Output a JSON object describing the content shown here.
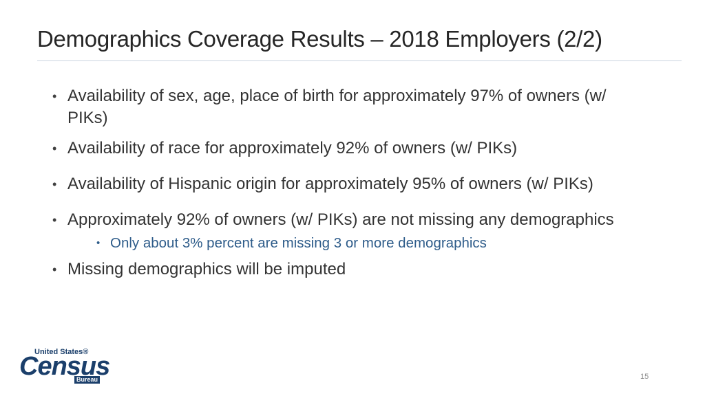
{
  "title": "Demographics Coverage Results – 2018 Employers (2/2)",
  "bullets": [
    {
      "text": "Availability of sex, age, place of birth for approximately 97% of owners (w/ PIKs)"
    },
    {
      "text": "Availability of race for approximately 92% of owners (w/ PIKs)"
    },
    {
      "text": "Availability of Hispanic origin for approximately 95% of owners (w/ PIKs)"
    },
    {
      "text": "Approximately 92% of owners (w/ PIKs) are not missing any demographics"
    },
    {
      "text": "Missing demographics will be imputed"
    }
  ],
  "sub_bullets": [
    {
      "text": "Only about 3% percent are missing 3 or more demographics"
    }
  ],
  "bullet_glyph": "•",
  "logo": {
    "line1": "United States®",
    "line2": "Census",
    "line3": "Bureau"
  },
  "page_number": "15",
  "colors": {
    "title": "#262626",
    "body_text": "#333333",
    "sub_bullet_text": "#2e5c8a",
    "logo_blue": "#1b3f6b"
  }
}
